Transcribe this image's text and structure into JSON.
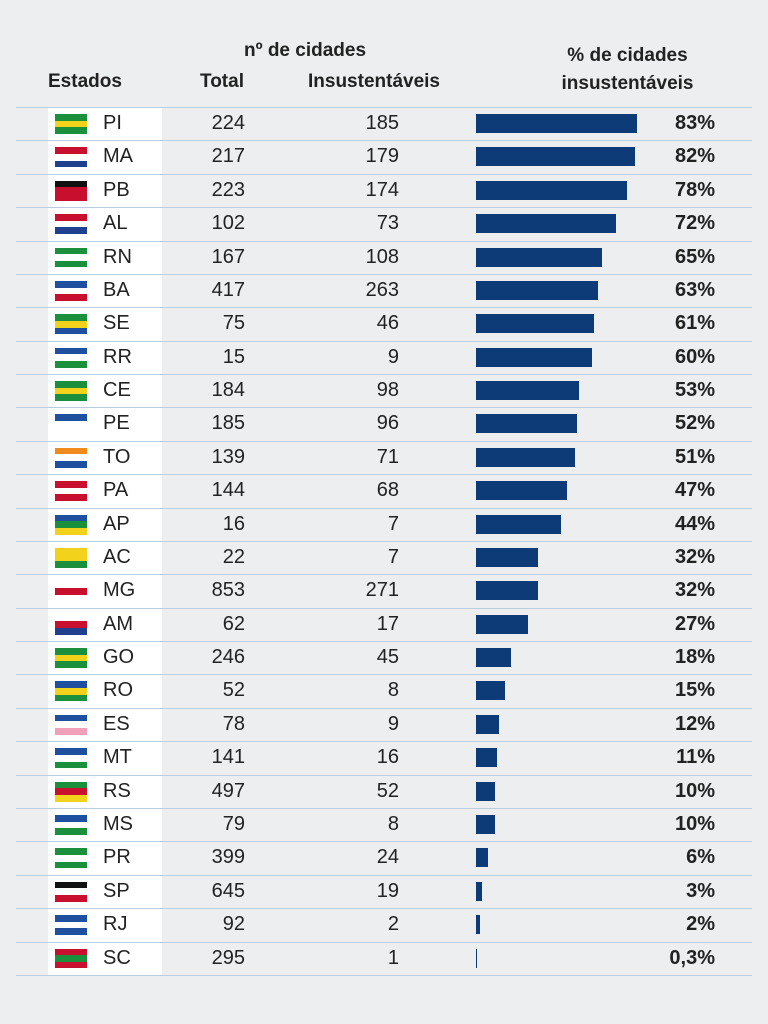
{
  "chart_data": {
    "type": "bar",
    "orientation": "horizontal",
    "header": {
      "states": "Estados",
      "group": "nº de cidades",
      "total": "Total",
      "unsustainable": "Insustentáveis",
      "percent": "% de cidades insustentáveis"
    },
    "categories": [
      "PI",
      "MA",
      "PB",
      "AL",
      "RN",
      "BA",
      "SE",
      "RR",
      "CE",
      "PE",
      "TO",
      "PA",
      "AP",
      "AC",
      "MG",
      "AM",
      "GO",
      "RO",
      "ES",
      "MT",
      "RS",
      "MS",
      "PR",
      "SP",
      "RJ",
      "SC"
    ],
    "totals": [
      224,
      217,
      223,
      102,
      167,
      417,
      75,
      15,
      184,
      185,
      139,
      144,
      16,
      22,
      853,
      62,
      246,
      52,
      78,
      141,
      497,
      79,
      399,
      645,
      92,
      295
    ],
    "unsustainable": [
      185,
      179,
      174,
      73,
      108,
      263,
      46,
      9,
      98,
      96,
      71,
      68,
      7,
      7,
      271,
      17,
      45,
      8,
      9,
      16,
      52,
      8,
      24,
      19,
      2,
      1
    ],
    "values": [
      83,
      82,
      78,
      72,
      65,
      63,
      61,
      60,
      53,
      52,
      51,
      47,
      44,
      32,
      32,
      27,
      18,
      15,
      12,
      11,
      10,
      10,
      6,
      3,
      2,
      0.3
    ],
    "value_labels": [
      "83%",
      "82%",
      "78%",
      "72%",
      "65%",
      "63%",
      "61%",
      "60%",
      "53%",
      "52%",
      "51%",
      "47%",
      "44%",
      "32%",
      "32%",
      "27%",
      "18%",
      "15%",
      "12%",
      "11%",
      "10%",
      "10%",
      "6%",
      "3%",
      "2%",
      "0,3%"
    ],
    "color": "#0d3b78"
  }
}
